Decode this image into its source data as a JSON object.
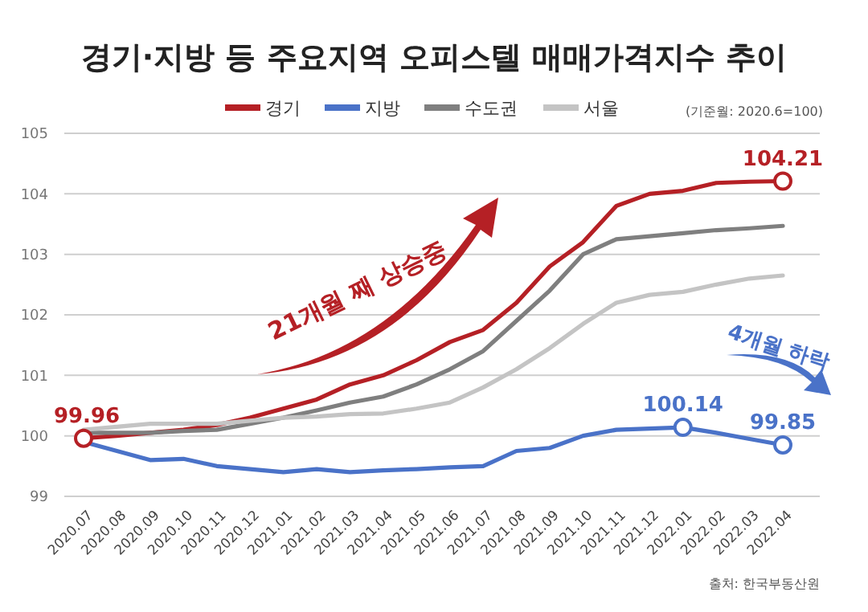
{
  "chart_data": {
    "type": "line",
    "title": "경기·지방 등 주요지역 오피스텔 매매가격지수 추이",
    "categories": [
      "2020.07",
      "2020.08",
      "2020.09",
      "2020.10",
      "2020.11",
      "2020.12",
      "2021.01",
      "2021.02",
      "2021.03",
      "2021.04",
      "2021.05",
      "2021.06",
      "2021.07",
      "2021.08",
      "2021.09",
      "2021.10",
      "2021.11",
      "2021.12",
      "2022.01",
      "2022.02",
      "2022.03",
      "2022.04"
    ],
    "series": [
      {
        "name": "경기",
        "color": "#b52025",
        "values": [
          99.96,
          100.0,
          100.05,
          100.1,
          100.18,
          100.3,
          100.45,
          100.6,
          100.85,
          101.0,
          101.25,
          101.55,
          101.75,
          102.2,
          102.8,
          103.2,
          103.8,
          104.0,
          104.05,
          104.18,
          104.2,
          104.21
        ]
      },
      {
        "name": "지방",
        "color": "#4a72c8",
        "values": [
          99.9,
          99.75,
          99.6,
          99.62,
          99.5,
          99.45,
          99.4,
          99.45,
          99.4,
          99.43,
          99.45,
          99.48,
          99.5,
          99.75,
          99.8,
          100.0,
          100.1,
          100.12,
          100.14,
          100.05,
          99.95,
          99.85
        ]
      },
      {
        "name": "수도권",
        "color": "#7f7f7f",
        "values": [
          100.05,
          100.05,
          100.05,
          100.08,
          100.1,
          100.2,
          100.3,
          100.42,
          100.55,
          100.65,
          100.85,
          101.1,
          101.4,
          101.9,
          102.4,
          103.0,
          103.25,
          103.3,
          103.35,
          103.4,
          103.43,
          103.47
        ]
      },
      {
        "name": "서울",
        "color": "#c4c4c4",
        "values": [
          100.1,
          100.15,
          100.2,
          100.2,
          100.2,
          100.25,
          100.3,
          100.32,
          100.36,
          100.37,
          100.45,
          100.55,
          100.8,
          101.1,
          101.45,
          101.85,
          102.2,
          102.33,
          102.38,
          102.5,
          102.6,
          102.65
        ]
      }
    ],
    "ylim": [
      99,
      105
    ],
    "yticks": [
      99,
      100,
      101,
      102,
      103,
      104,
      105
    ],
    "grid": "y",
    "legend": "top",
    "marker": "none",
    "line_style": "solid",
    "annotations": [
      {
        "text": "99.96",
        "x": "2020.07",
        "y": 99.96
      },
      {
        "text": "104.21",
        "x": "2022.04",
        "y": 104.21
      },
      {
        "text": "100.14",
        "x": "2022.01",
        "y": 100.14
      },
      {
        "text": "99.85",
        "x": "2022.04",
        "y": 99.85
      },
      "21개월 째 상승중",
      "4개월 하락",
      "(기준월: 2020.6=100)",
      "출처: 한국부동산원"
    ]
  }
}
